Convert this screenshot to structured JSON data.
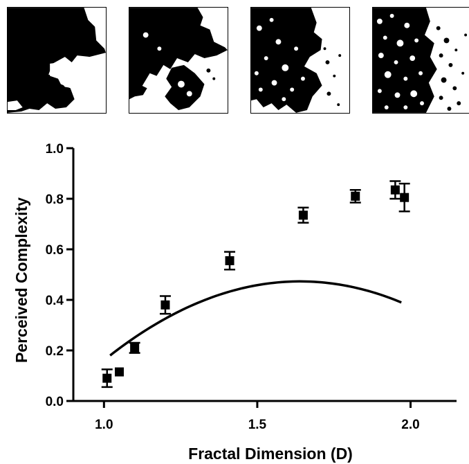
{
  "thumbnails": [
    {
      "name": "fractal-pattern-1"
    },
    {
      "name": "fractal-pattern-2"
    },
    {
      "name": "fractal-pattern-3"
    },
    {
      "name": "fractal-pattern-4"
    }
  ],
  "chart_data": {
    "type": "scatter",
    "xlabel": "Fractal Dimension (D)",
    "ylabel": "Perceived Complexity",
    "xlim": [
      0.9,
      2.15
    ],
    "ylim": [
      0.0,
      1.0
    ],
    "x_ticks": [
      1.0,
      1.5,
      2.0
    ],
    "x_tick_labels": [
      "1.0",
      "1.5",
      "2.0"
    ],
    "y_ticks": [
      0.0,
      0.2,
      0.4,
      0.6,
      0.8,
      1.0
    ],
    "y_tick_labels": [
      "0.0",
      "0.2",
      "0.4",
      "0.6",
      "0.8",
      "1.0"
    ],
    "grid": false,
    "series": [
      {
        "marker": "square",
        "color": "#000000",
        "points": [
          {
            "x": 1.01,
            "y": 0.09,
            "err": 0.035
          },
          {
            "x": 1.05,
            "y": 0.115,
            "err": 0.0
          },
          {
            "x": 1.1,
            "y": 0.21,
            "err": 0.02
          },
          {
            "x": 1.2,
            "y": 0.38,
            "err": 0.035
          },
          {
            "x": 1.41,
            "y": 0.555,
            "err": 0.035
          },
          {
            "x": 1.65,
            "y": 0.735,
            "err": 0.03
          },
          {
            "x": 1.82,
            "y": 0.81,
            "err": 0.025
          },
          {
            "x": 1.95,
            "y": 0.835,
            "err": 0.035
          },
          {
            "x": 1.98,
            "y": 0.805,
            "err": 0.055
          }
        ]
      }
    ],
    "fit_curve": {
      "type": "quadratic",
      "coefficients": [
        -1.578,
        2.502,
        -0.763
      ],
      "x_range": [
        1.02,
        1.97
      ]
    }
  }
}
